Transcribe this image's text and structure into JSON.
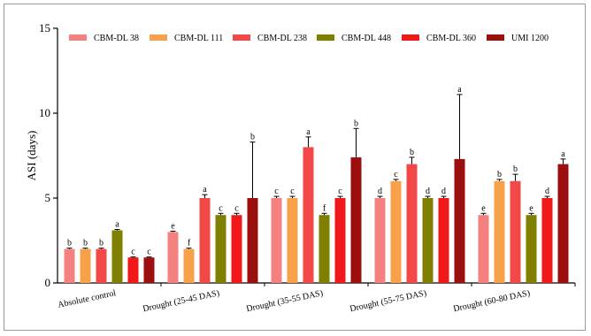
{
  "chart_data": {
    "type": "bar",
    "ylabel": "ASI (days)",
    "xlabel": "",
    "ylim": [
      0,
      15
    ],
    "yticks": [
      0,
      5,
      10,
      15
    ],
    "grid": false,
    "legend_position": "top",
    "categories": [
      "Absolute control",
      "Drought (25-45 DAS)",
      "Drought (35-55 DAS)",
      "Drought (55-75 DAS)",
      "Drought (60-80 DAS)"
    ],
    "series": [
      {
        "name": "CBM-DL 38",
        "color": "#f58080",
        "values": [
          2.0,
          3.0,
          5.0,
          5.0,
          4.0
        ],
        "errors": [
          0.05,
          0.05,
          0.1,
          0.1,
          0.1
        ],
        "letters": [
          "b",
          "e",
          "c",
          "d",
          "e"
        ]
      },
      {
        "name": "CBM-DL 111",
        "color": "#f7a14a",
        "values": [
          2.0,
          2.0,
          5.0,
          6.0,
          6.0
        ],
        "errors": [
          0.05,
          0.05,
          0.1,
          0.1,
          0.1
        ],
        "letters": [
          "b",
          "f",
          "c",
          "c",
          "b"
        ]
      },
      {
        "name": "CBM-DL 238",
        "color": "#f24848",
        "values": [
          2.0,
          5.0,
          8.0,
          7.0,
          6.0
        ],
        "errors": [
          0.05,
          0.2,
          0.6,
          0.4,
          0.4
        ],
        "letters": [
          "b",
          "a",
          "a",
          "b",
          "b"
        ]
      },
      {
        "name": "CBM-DL 448",
        "color": "#7f7f00",
        "values": [
          3.1,
          4.0,
          4.0,
          5.0,
          4.0
        ],
        "errors": [
          0.05,
          0.1,
          0.1,
          0.1,
          0.1
        ],
        "letters": [
          "a",
          "c",
          "f",
          "d",
          "e"
        ]
      },
      {
        "name": "CBM-DL 360",
        "color": "#f01818",
        "values": [
          1.5,
          4.0,
          5.0,
          5.0,
          5.0
        ],
        "errors": [
          0.03,
          0.1,
          0.1,
          0.1,
          0.1
        ],
        "letters": [
          "c",
          "c",
          "c",
          "d",
          "d"
        ]
      },
      {
        "name": "UMI 1200",
        "color": "#9c0f0f",
        "values": [
          1.5,
          5.0,
          7.4,
          7.3,
          7.0
        ],
        "errors": [
          0.03,
          3.3,
          1.7,
          3.8,
          0.3
        ],
        "letters": [
          "c",
          "b",
          "b",
          "a",
          "a"
        ]
      }
    ]
  }
}
